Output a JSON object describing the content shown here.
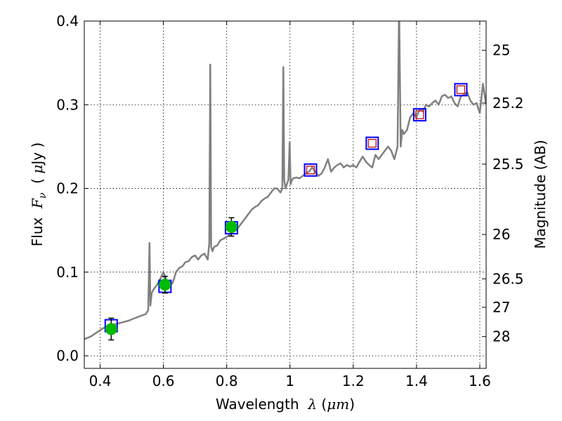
{
  "chart_data": {
    "type": "line",
    "xlabel_prefix": "Wavelength  ",
    "xlabel_lambda": "λ",
    "xlabel_open": " (",
    "xlabel_unit": "μm",
    "xlabel_close": ")",
    "ylabel_prefix": "Flux  ",
    "ylabel_F": "F",
    "ylabel_nu": "ν",
    "ylabel_space": "  ( ",
    "ylabel_mu": "μ",
    "ylabel_unit": "Jy )",
    "y2label": "Magnitude (AB)",
    "xlim": [
      0.35,
      1.62
    ],
    "ylim": [
      -0.015,
      0.4
    ],
    "grid": true,
    "x_ticks": [
      0.4,
      0.6,
      0.8,
      1.0,
      1.2,
      1.4,
      1.6
    ],
    "x_tick_labels": [
      "0.4",
      "0.6",
      "0.8",
      "1",
      "1.2",
      "1.4",
      "1.6"
    ],
    "y_ticks": [
      0.0,
      0.1,
      0.2,
      0.3,
      0.4
    ],
    "y_tick_labels": [
      "0.0",
      "0.1",
      "0.2",
      "0.3",
      "0.4"
    ],
    "mag_ticks": [
      {
        "flux": 0.365,
        "label": "25"
      },
      {
        "flux": 0.302,
        "label": "25.2"
      },
      {
        "flux": 0.229,
        "label": "25.5"
      },
      {
        "flux": 0.145,
        "label": "26"
      },
      {
        "flux": 0.092,
        "label": "26.5"
      },
      {
        "flux": 0.058,
        "label": "27"
      },
      {
        "flux": 0.023,
        "label": "28"
      }
    ],
    "colors": {
      "spectrum": "#808080",
      "box": "#0000ff",
      "observed": "#00bb00",
      "model_box": "#cc2222",
      "errorbar": "#000000"
    },
    "series": [
      {
        "name": "model spectrum",
        "x": [
          0.35,
          0.37,
          0.39,
          0.41,
          0.43,
          0.45,
          0.47,
          0.49,
          0.51,
          0.53,
          0.545,
          0.552,
          0.556,
          0.559,
          0.563,
          0.57,
          0.58,
          0.59,
          0.6,
          0.61,
          0.62,
          0.63,
          0.64,
          0.65,
          0.66,
          0.67,
          0.68,
          0.69,
          0.7,
          0.71,
          0.72,
          0.73,
          0.74,
          0.745,
          0.748,
          0.751,
          0.755,
          0.76,
          0.77,
          0.78,
          0.79,
          0.8,
          0.81,
          0.82,
          0.83,
          0.84,
          0.85,
          0.86,
          0.87,
          0.88,
          0.89,
          0.9,
          0.91,
          0.92,
          0.93,
          0.94,
          0.95,
          0.96,
          0.97,
          0.976,
          0.979,
          0.982,
          0.986,
          0.99,
          0.995,
          0.999,
          1.002,
          1.006,
          1.01,
          1.02,
          1.03,
          1.04,
          1.05,
          1.06,
          1.07,
          1.08,
          1.09,
          1.1,
          1.11,
          1.12,
          1.13,
          1.14,
          1.15,
          1.16,
          1.17,
          1.18,
          1.19,
          1.2,
          1.21,
          1.22,
          1.23,
          1.24,
          1.25,
          1.26,
          1.27,
          1.28,
          1.29,
          1.3,
          1.31,
          1.32,
          1.33,
          1.34,
          1.345,
          1.35,
          1.355,
          1.36,
          1.37,
          1.38,
          1.39,
          1.4,
          1.41,
          1.42,
          1.43,
          1.44,
          1.45,
          1.46,
          1.47,
          1.48,
          1.49,
          1.5,
          1.51,
          1.52,
          1.53,
          1.54,
          1.55,
          1.56,
          1.57,
          1.58,
          1.59,
          1.6,
          1.61,
          1.62
        ],
        "y": [
          0.02,
          0.023,
          0.028,
          0.033,
          0.036,
          0.038,
          0.04,
          0.042,
          0.045,
          0.048,
          0.05,
          0.055,
          0.135,
          0.06,
          0.075,
          0.08,
          0.085,
          0.092,
          0.1,
          0.09,
          0.083,
          0.088,
          0.1,
          0.105,
          0.107,
          0.112,
          0.113,
          0.118,
          0.12,
          0.115,
          0.12,
          0.122,
          0.115,
          0.135,
          0.348,
          0.13,
          0.125,
          0.13,
          0.132,
          0.138,
          0.14,
          0.142,
          0.145,
          0.148,
          0.15,
          0.155,
          0.16,
          0.165,
          0.17,
          0.175,
          0.178,
          0.18,
          0.185,
          0.188,
          0.19,
          0.195,
          0.2,
          0.2,
          0.195,
          0.2,
          0.345,
          0.21,
          0.2,
          0.205,
          0.21,
          0.255,
          0.205,
          0.21,
          0.212,
          0.213,
          0.212,
          0.215,
          0.218,
          0.22,
          0.225,
          0.22,
          0.215,
          0.218,
          0.225,
          0.235,
          0.22,
          0.225,
          0.228,
          0.23,
          0.225,
          0.228,
          0.226,
          0.228,
          0.225,
          0.232,
          0.238,
          0.232,
          0.228,
          0.225,
          0.24,
          0.235,
          0.24,
          0.245,
          0.25,
          0.245,
          0.235,
          0.25,
          0.42,
          0.25,
          0.27,
          0.265,
          0.27,
          0.285,
          0.29,
          0.285,
          0.295,
          0.292,
          0.3,
          0.298,
          0.302,
          0.305,
          0.3,
          0.31,
          0.312,
          0.308,
          0.31,
          0.302,
          0.298,
          0.31,
          0.312,
          0.315,
          0.305,
          0.3,
          0.302,
          0.29,
          0.325,
          0.3
        ]
      },
      {
        "name": "photometry boxes",
        "x": [
          0.435,
          0.605,
          0.815,
          1.065,
          1.26,
          1.41,
          1.54
        ],
        "y": [
          0.036,
          0.083,
          0.153,
          0.222,
          0.254,
          0.288,
          0.318
        ]
      },
      {
        "name": "observed photometry",
        "x": [
          0.435,
          0.605,
          0.815
        ],
        "y": [
          0.032,
          0.085,
          0.154
        ],
        "err": [
          0.013,
          0.01,
          0.011
        ]
      },
      {
        "name": "model magnitudes",
        "x": [
          1.065,
          1.26,
          1.41,
          1.54
        ],
        "y": [
          0.222,
          0.254,
          0.288,
          0.318
        ]
      }
    ]
  }
}
